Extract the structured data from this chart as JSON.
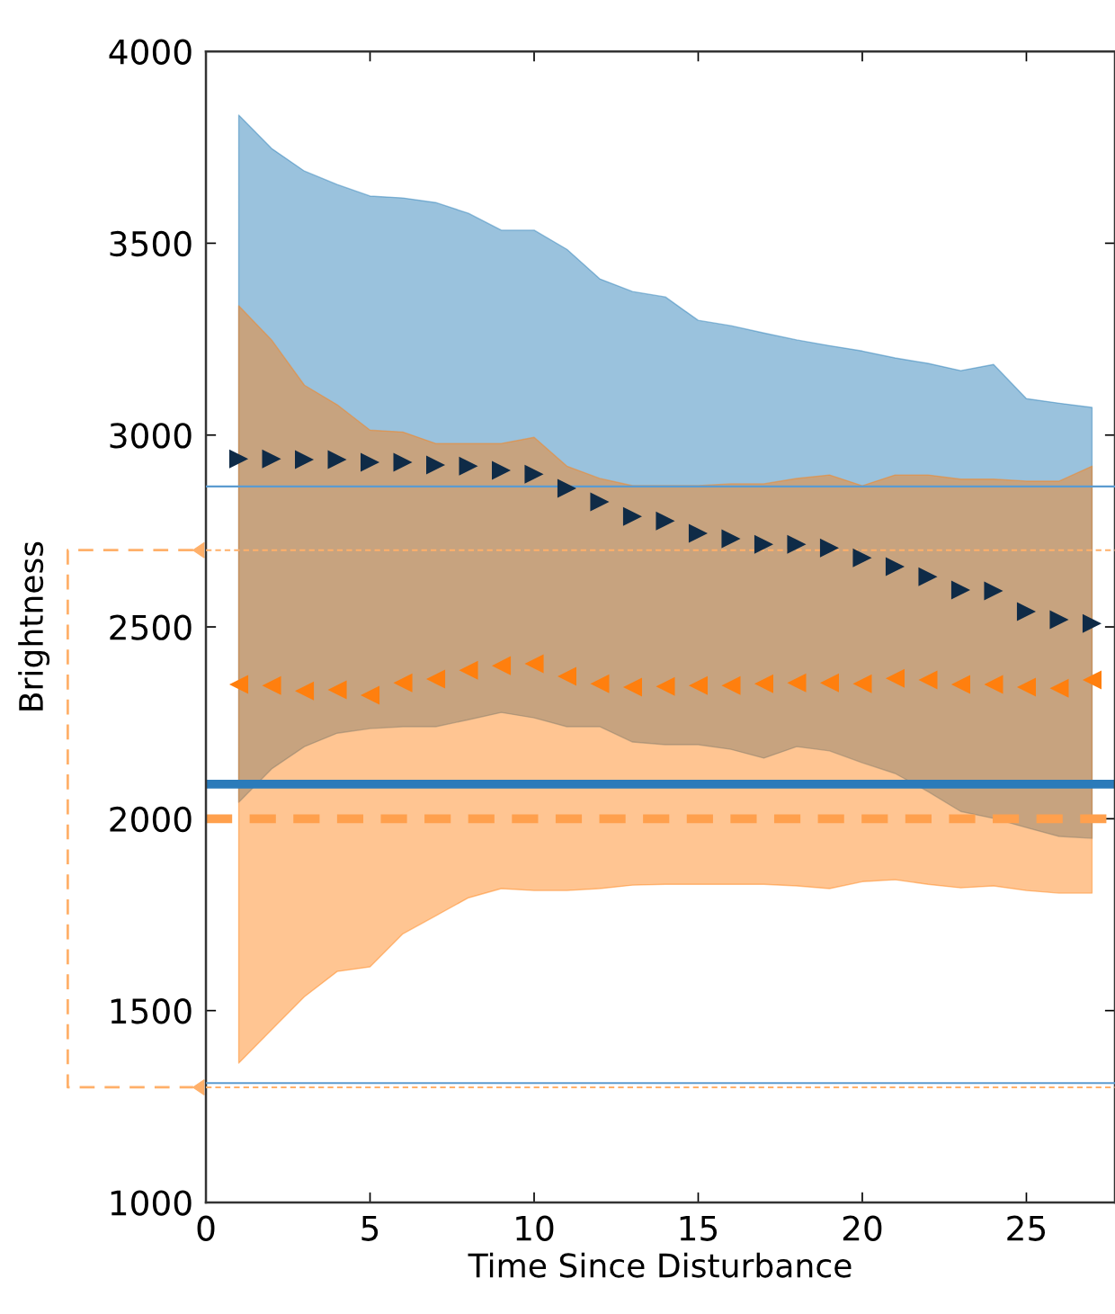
{
  "chart_data": {
    "type": "scatter",
    "xlabel": "Time Since Disturbance",
    "ylabel": "Brightness",
    "xlim": [
      0,
      27.7
    ],
    "ylim": [
      1000,
      4000
    ],
    "xticks": [
      0,
      5,
      10,
      15,
      20,
      25
    ],
    "yticks": [
      1000,
      1500,
      2000,
      2500,
      3000,
      3500,
      4000
    ],
    "grid": false,
    "line_style": "none",
    "series": [
      {
        "color": "#1f77b4",
        "colors": [
          "#0f2b47",
          "#0f2b47",
          "#0f2b47",
          "#0f2b47",
          "#0f2b47",
          "#0f2b47",
          "#0f2b47",
          "#0f2b47",
          "#0f2b47",
          "#0f2b47",
          "#0f2b47",
          "#0f2b47",
          "#0f2b47",
          "#0f2b47",
          "#0f2b47",
          "#0f2b47",
          "#0f2b47",
          "#0f2b47",
          "#0f2b47",
          "#0f2b47",
          "#0f2b47",
          "#0f2b47",
          "#0f2b47",
          "#0f2b47",
          "#0f2b47",
          "#0f2b47",
          "#0f2b47"
        ],
        "marker": "triangle-right",
        "x": [
          1,
          2,
          3,
          4,
          5,
          6,
          7,
          8,
          9,
          10,
          11,
          12,
          13,
          14,
          15,
          16,
          17,
          18,
          19,
          20,
          21,
          22,
          23,
          24,
          25,
          26,
          27
        ],
        "values": [
          2938,
          2938,
          2936,
          2936,
          2929,
          2929,
          2922,
          2919,
          2908,
          2898,
          2861,
          2826,
          2788,
          2776,
          2744,
          2730,
          2715,
          2715,
          2706,
          2680,
          2657,
          2631,
          2596,
          2594,
          2540,
          2519,
          2509
        ],
        "lower": [
          2043,
          2130,
          2188,
          2223,
          2235,
          2240,
          2240,
          2258,
          2277,
          2263,
          2240,
          2240,
          2200,
          2193,
          2193,
          2181,
          2158,
          2188,
          2177,
          2146,
          2118,
          2071,
          2019,
          2001,
          1977,
          1954,
          1949
        ],
        "upper": [
          3834,
          3747,
          3688,
          3653,
          3623,
          3618,
          3606,
          3578,
          3534,
          3534,
          3484,
          3407,
          3374,
          3360,
          3299,
          3285,
          3266,
          3248,
          3233,
          3219,
          3201,
          3187,
          3168,
          3184,
          3095,
          3083,
          3072
        ]
      },
      {
        "color": "#ff7f0e",
        "colors": [
          "#ff7f0e",
          "#ff7f0e",
          "#ff7f0e",
          "#ff7f0e",
          "#ff7f0e",
          "#ff7f0e",
          "#ff7f0e",
          "#ff7f0e",
          "#ff7f0e",
          "#ff7f0e",
          "#ff7f0e",
          "#ff7f0e",
          "#ff7f0e",
          "#ff7f0e",
          "#ff7f0e",
          "#ff7f0e",
          "#ff7f0e",
          "#ff7f0e",
          "#ff7f0e",
          "#ff7f0e",
          "#ff7f0e",
          "#ff7f0e",
          "#ff7f0e",
          "#ff7f0e",
          "#ff7f0e",
          "#ff7f0e",
          "#ff7f0e"
        ],
        "marker": "triangle-left",
        "x": [
          1,
          2,
          3,
          4,
          5,
          6,
          7,
          8,
          9,
          10,
          11,
          12,
          13,
          14,
          15,
          16,
          17,
          18,
          19,
          20,
          21,
          22,
          23,
          24,
          25,
          26,
          27
        ],
        "values": [
          2350,
          2347,
          2333,
          2336,
          2322,
          2354,
          2364,
          2387,
          2399,
          2404,
          2371,
          2352,
          2343,
          2345,
          2347,
          2347,
          2352,
          2354,
          2354,
          2352,
          2366,
          2362,
          2350,
          2350,
          2343,
          2340,
          2362
        ],
        "lower": [
          1363,
          1450,
          1536,
          1602,
          1614,
          1700,
          1747,
          1794,
          1818,
          1813,
          1813,
          1818,
          1827,
          1829,
          1829,
          1829,
          1829,
          1825,
          1818,
          1836,
          1841,
          1829,
          1820,
          1825,
          1813,
          1806,
          1806
        ],
        "upper": [
          3337,
          3248,
          3130,
          3079,
          3013,
          3008,
          2978,
          2978,
          2978,
          2994,
          2919,
          2887,
          2868,
          2868,
          2868,
          2873,
          2873,
          2887,
          2896,
          2868,
          2896,
          2896,
          2885,
          2885,
          2880,
          2880,
          2919
        ]
      },
      {
        "type": "line",
        "color": "#2b7bba",
        "line_style": "solid",
        "x": [
          0,
          27.7
        ],
        "values": [
          2090,
          2090
        ]
      },
      {
        "type": "line",
        "color": "#ffa04d",
        "line_style": "dashed",
        "x": [
          0,
          27.7
        ],
        "values": [
          2000,
          2000
        ]
      }
    ],
    "ref_lines": [
      {
        "axis": "y",
        "value": 2866,
        "color": "#5b9bd0",
        "line_style": "solid"
      },
      {
        "axis": "y",
        "value": 1311,
        "color": "#5b9bd0",
        "line_style": "solid"
      },
      {
        "axis": "y",
        "value": 2700,
        "color": "#ffb06a",
        "line_style": "dashed"
      },
      {
        "axis": "y",
        "value": 1300,
        "color": "#ffb06a",
        "line_style": "dashed"
      }
    ]
  }
}
